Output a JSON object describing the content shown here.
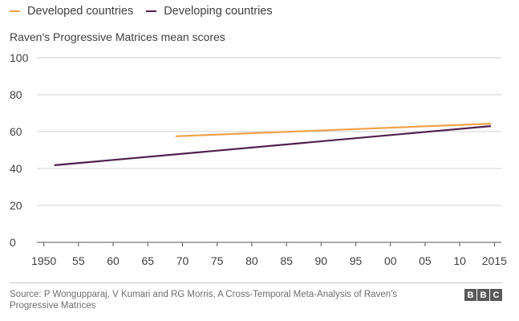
{
  "colors": {
    "developed": "#f0a24a",
    "developing": "#4f1f4f",
    "grid": "#d0d0d0",
    "axis": "#555555"
  },
  "chart_data": {
    "type": "line",
    "title": "",
    "ylabel": "Raven's Progressive Matrices mean scores",
    "xlabel": "",
    "xlim": [
      1949,
      2016
    ],
    "ylim": [
      0,
      100
    ],
    "y_ticks": [
      0,
      20,
      40,
      60,
      80,
      100
    ],
    "x_ticks": [
      {
        "value": 1950,
        "label": "1950"
      },
      {
        "value": 1955,
        "label": "55"
      },
      {
        "value": 1960,
        "label": "60"
      },
      {
        "value": 1965,
        "label": "65"
      },
      {
        "value": 1970,
        "label": "70"
      },
      {
        "value": 1975,
        "label": "75"
      },
      {
        "value": 1980,
        "label": "80"
      },
      {
        "value": 1985,
        "label": "85"
      },
      {
        "value": 1990,
        "label": "90"
      },
      {
        "value": 1995,
        "label": "95"
      },
      {
        "value": 2000,
        "label": "00"
      },
      {
        "value": 2005,
        "label": "05"
      },
      {
        "value": 2010,
        "label": "10"
      },
      {
        "value": 2015,
        "label": "2015"
      }
    ],
    "grid": true,
    "legend_position": "top-left",
    "series": [
      {
        "name": "Developed countries",
        "color": "#f0a24a",
        "x": [
          1969,
          2014.5
        ],
        "y": [
          57.5,
          64.3
        ]
      },
      {
        "name": "Developing countries",
        "color": "#4f1f4f",
        "x": [
          1951.5,
          2014.5
        ],
        "y": [
          41.8,
          63.0
        ]
      }
    ]
  },
  "footer": {
    "source": "Source: P Wongupparaj, V Kumari and RG Morris, A Cross-Temporal Meta-Analysis of Raven's Progressive Matrices",
    "logo": [
      "B",
      "B",
      "C"
    ]
  }
}
